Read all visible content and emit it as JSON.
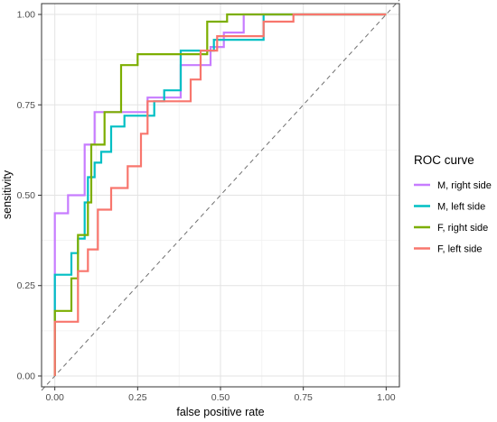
{
  "chart_data": {
    "type": "line",
    "title": "",
    "xlabel": "false positive rate",
    "ylabel": "sensitivity",
    "xlim": [
      -0.04,
      1.04
    ],
    "ylim": [
      -0.03,
      1.03
    ],
    "x_ticks": [
      0,
      0.25,
      0.5,
      0.75,
      1
    ],
    "x_tick_labels": [
      "0.00",
      "0.25",
      "0.50",
      "0.75",
      "1.00"
    ],
    "y_ticks": [
      0,
      0.25,
      0.5,
      0.75,
      1
    ],
    "y_tick_labels": [
      "0.00",
      "0.25",
      "0.50",
      "0.75",
      "1.00"
    ],
    "grid": true,
    "diagonal_reference": true,
    "legend_title": "ROC curve",
    "legend_position": "right",
    "series": [
      {
        "name": "M, right side",
        "color": "#C77CFF",
        "points": [
          [
            0,
            0
          ],
          [
            0,
            0.45
          ],
          [
            0.04,
            0.45
          ],
          [
            0.04,
            0.5
          ],
          [
            0.09,
            0.5
          ],
          [
            0.09,
            0.64
          ],
          [
            0.12,
            0.64
          ],
          [
            0.12,
            0.73
          ],
          [
            0.28,
            0.73
          ],
          [
            0.28,
            0.77
          ],
          [
            0.38,
            0.77
          ],
          [
            0.38,
            0.86
          ],
          [
            0.47,
            0.86
          ],
          [
            0.47,
            0.91
          ],
          [
            0.51,
            0.91
          ],
          [
            0.51,
            0.95
          ],
          [
            0.57,
            0.95
          ],
          [
            0.57,
            1
          ],
          [
            1,
            1
          ]
        ]
      },
      {
        "name": "M, left side",
        "color": "#00BFC4",
        "points": [
          [
            0,
            0
          ],
          [
            0,
            0.28
          ],
          [
            0.05,
            0.28
          ],
          [
            0.05,
            0.34
          ],
          [
            0.07,
            0.34
          ],
          [
            0.07,
            0.38
          ],
          [
            0.09,
            0.38
          ],
          [
            0.09,
            0.48
          ],
          [
            0.1,
            0.48
          ],
          [
            0.1,
            0.55
          ],
          [
            0.12,
            0.55
          ],
          [
            0.12,
            0.59
          ],
          [
            0.14,
            0.59
          ],
          [
            0.14,
            0.62
          ],
          [
            0.17,
            0.62
          ],
          [
            0.17,
            0.69
          ],
          [
            0.21,
            0.69
          ],
          [
            0.21,
            0.72
          ],
          [
            0.3,
            0.72
          ],
          [
            0.3,
            0.76
          ],
          [
            0.33,
            0.76
          ],
          [
            0.33,
            0.79
          ],
          [
            0.38,
            0.79
          ],
          [
            0.38,
            0.9
          ],
          [
            0.48,
            0.9
          ],
          [
            0.48,
            0.93
          ],
          [
            0.63,
            0.93
          ],
          [
            0.63,
            1
          ],
          [
            1,
            1
          ]
        ]
      },
      {
        "name": "F, right side",
        "color": "#7CAE00",
        "points": [
          [
            0,
            0
          ],
          [
            0,
            0.18
          ],
          [
            0.05,
            0.18
          ],
          [
            0.05,
            0.27
          ],
          [
            0.07,
            0.27
          ],
          [
            0.07,
            0.39
          ],
          [
            0.1,
            0.39
          ],
          [
            0.1,
            0.48
          ],
          [
            0.11,
            0.48
          ],
          [
            0.11,
            0.64
          ],
          [
            0.15,
            0.64
          ],
          [
            0.15,
            0.73
          ],
          [
            0.2,
            0.73
          ],
          [
            0.2,
            0.86
          ],
          [
            0.25,
            0.86
          ],
          [
            0.25,
            0.89
          ],
          [
            0.46,
            0.89
          ],
          [
            0.46,
            0.98
          ],
          [
            0.52,
            0.98
          ],
          [
            0.52,
            1
          ],
          [
            1,
            1
          ]
        ]
      },
      {
        "name": "F, left side",
        "color": "#F8766D",
        "points": [
          [
            0,
            0
          ],
          [
            0,
            0.15
          ],
          [
            0.07,
            0.15
          ],
          [
            0.07,
            0.29
          ],
          [
            0.1,
            0.29
          ],
          [
            0.1,
            0.35
          ],
          [
            0.13,
            0.35
          ],
          [
            0.13,
            0.46
          ],
          [
            0.17,
            0.46
          ],
          [
            0.17,
            0.52
          ],
          [
            0.22,
            0.52
          ],
          [
            0.22,
            0.58
          ],
          [
            0.26,
            0.58
          ],
          [
            0.26,
            0.67
          ],
          [
            0.28,
            0.67
          ],
          [
            0.28,
            0.76
          ],
          [
            0.41,
            0.76
          ],
          [
            0.41,
            0.82
          ],
          [
            0.44,
            0.82
          ],
          [
            0.44,
            0.9
          ],
          [
            0.49,
            0.9
          ],
          [
            0.49,
            0.94
          ],
          [
            0.63,
            0.94
          ],
          [
            0.63,
            0.98
          ],
          [
            0.72,
            0.98
          ],
          [
            0.72,
            1
          ],
          [
            1,
            1
          ]
        ]
      }
    ]
  }
}
